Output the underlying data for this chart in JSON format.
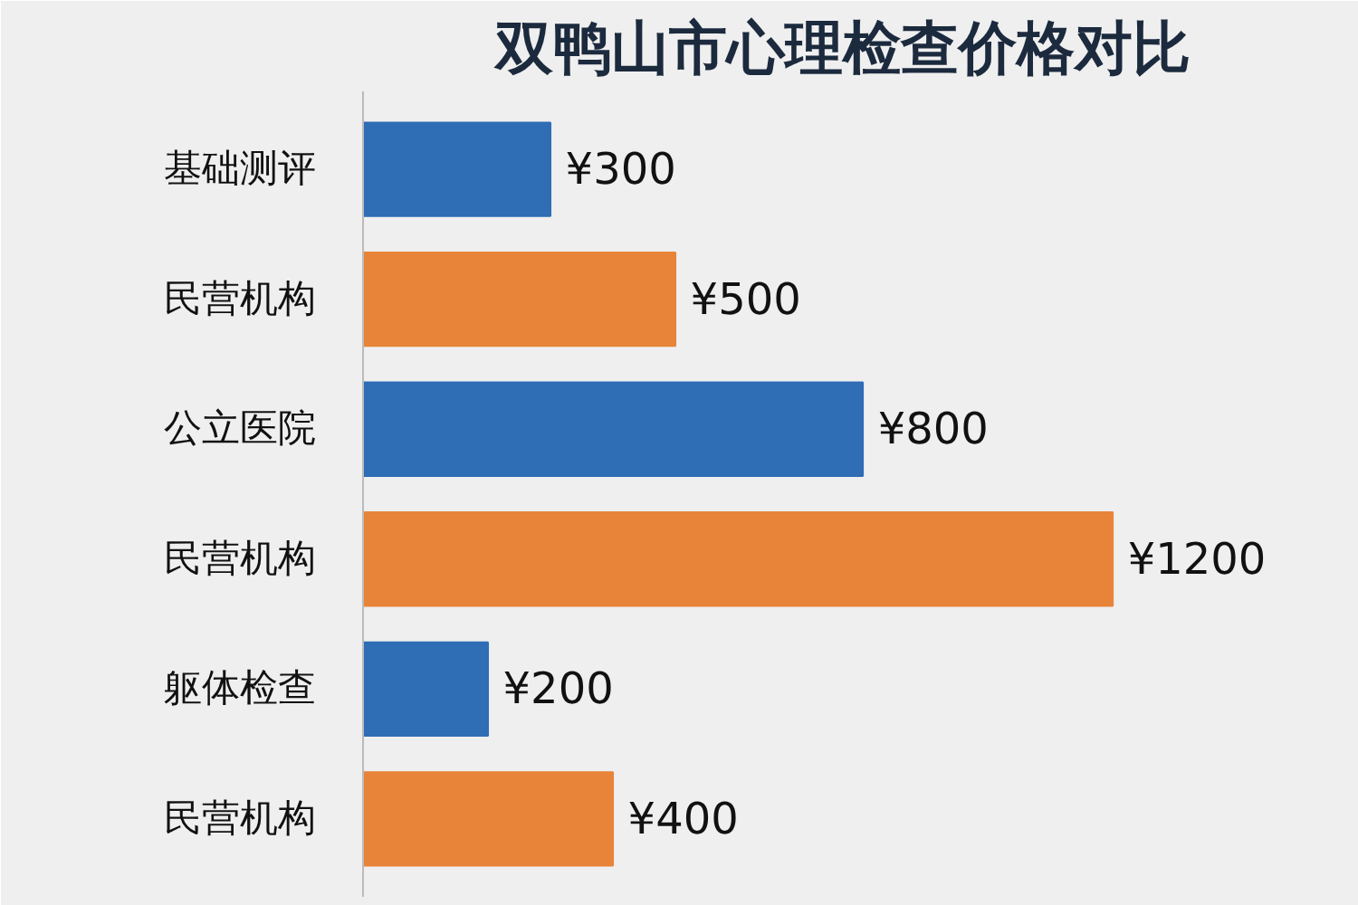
{
  "chart_data": {
    "type": "bar",
    "orientation": "horizontal",
    "title": "双鸭山市心理检查价格对比",
    "categories": [
      "基础测评",
      "民营机构",
      "公立医院",
      "民营机构",
      "躯体检查",
      "民营机构"
    ],
    "values": [
      300,
      500,
      800,
      1200,
      200,
      400
    ],
    "colors": [
      "#2f6db5",
      "#e8843a",
      "#2f6db5",
      "#e8843a",
      "#2f6db5",
      "#e8843a"
    ],
    "value_labels": [
      "¥300",
      "¥500",
      "¥800",
      "¥1200",
      "¥200",
      "¥400"
    ],
    "grid": false
  }
}
